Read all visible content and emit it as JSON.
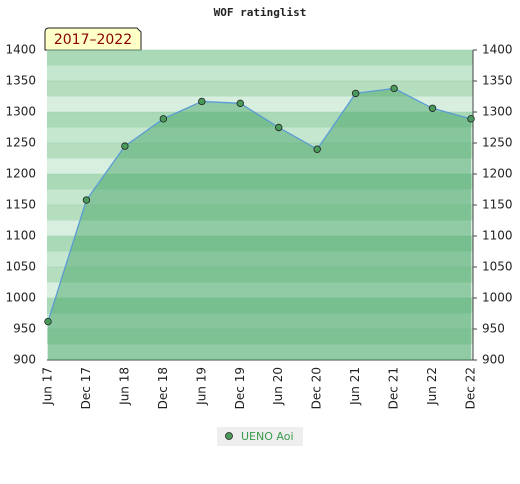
{
  "chart_data": {
    "type": "line",
    "title": "WOF ratinglist",
    "annotation": "2017–2022",
    "categories": [
      "Jun 17",
      "Dec 17",
      "Jun 18",
      "Dec 18",
      "Jun 19",
      "Dec 19",
      "Jun 20",
      "Dec 20",
      "Jun 21",
      "Dec 21",
      "Jun 22",
      "Dec 22"
    ],
    "series": [
      {
        "name": "UENO Aoi",
        "color": "#4a9a5c",
        "line_color": "#5b9bd5",
        "values": [
          962,
          1158,
          1245,
          1289,
          1317,
          1314,
          1275,
          1240,
          1330,
          1338,
          1306,
          1289
        ]
      }
    ],
    "ylim": [
      900,
      1400
    ],
    "yticks": [
      900,
      950,
      1000,
      1050,
      1100,
      1150,
      1200,
      1250,
      1300,
      1350,
      1400
    ],
    "grid": true,
    "legend": "bottom"
  }
}
